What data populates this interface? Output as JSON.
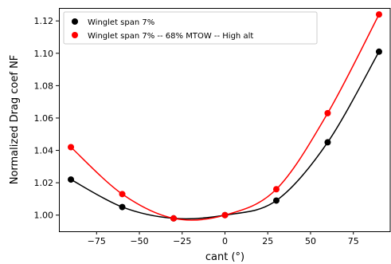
{
  "chart_data": {
    "type": "line",
    "xlabel": "cant (°)",
    "ylabel": "Normalized Drag coef NF",
    "xlim": [
      -97,
      97
    ],
    "ylim": [
      0.99,
      1.128
    ],
    "x_ticks": [
      -75,
      -50,
      -25,
      0,
      25,
      50,
      75
    ],
    "x_tick_labels": [
      "−75",
      "−50",
      "−25",
      "0",
      "25",
      "50",
      "75"
    ],
    "y_ticks": [
      1.0,
      1.02,
      1.04,
      1.06,
      1.08,
      1.1,
      1.12
    ],
    "y_tick_labels": [
      "1.00",
      "1.02",
      "1.04",
      "1.06",
      "1.08",
      "1.10",
      "1.12"
    ],
    "grid": false,
    "legend_position": "top-left",
    "series": [
      {
        "name": "Winglet span 7%",
        "color": "#000000",
        "x": [
          -90,
          -60,
          -30,
          0,
          30,
          60,
          90
        ],
        "y": [
          1.022,
          1.005,
          0.998,
          1.0,
          1.009,
          1.045,
          1.101
        ]
      },
      {
        "name": "Winglet span 7% -- 68% MTOW -- High alt",
        "color": "#ff0000",
        "x": [
          -90,
          -60,
          -30,
          0,
          30,
          60,
          90
        ],
        "y": [
          1.042,
          1.013,
          0.998,
          1.0,
          1.016,
          1.063,
          1.124
        ]
      }
    ]
  }
}
